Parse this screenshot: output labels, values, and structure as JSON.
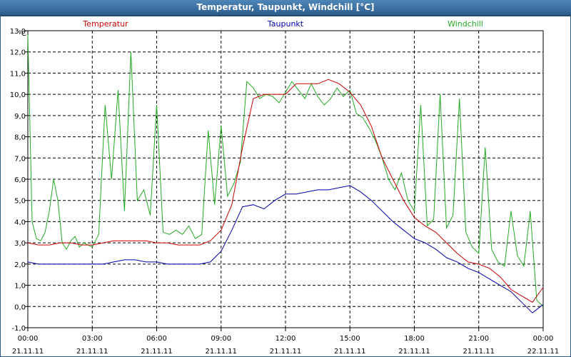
{
  "window": {
    "title": "Temperatur, Taupunkt, Windchill [°C]"
  },
  "colors": {
    "temperature": "#cc0000",
    "dewpoint": "#0000aa",
    "windchill": "#22aa22",
    "titlebar": "#3a6ea5"
  },
  "chart_data": {
    "type": "line",
    "title": "Temperatur, Taupunkt, Windchill [°C]",
    "ylabel": "°C",
    "xlabel": "",
    "unit": "°C",
    "ylim": [
      -1.0,
      13.0
    ],
    "xlim": [
      0,
      24
    ],
    "grid": true,
    "legend_position": "top",
    "y_ticks": [
      "-1,0",
      "0,0",
      "1,0",
      "2,0",
      "3,0",
      "4,0",
      "5,0",
      "6,0",
      "7,0",
      "8,0",
      "9,0",
      "10,0",
      "11,0",
      "12,0",
      "13,0"
    ],
    "x_ticks": [
      {
        "time": "00:00",
        "date": "21.11.11"
      },
      {
        "time": "03:00",
        "date": "21.11.11"
      },
      {
        "time": "06:00",
        "date": "21.11.11"
      },
      {
        "time": "09:00",
        "date": "21.11.11"
      },
      {
        "time": "12:00",
        "date": "21.11.11"
      },
      {
        "time": "15:00",
        "date": "21.11.11"
      },
      {
        "time": "18:00",
        "date": "21.11.11"
      },
      {
        "time": "21:00",
        "date": "21.11.11"
      },
      {
        "time": "00:00",
        "date": "22.11.11"
      }
    ],
    "series": [
      {
        "name": "Temperatur",
        "color": "#cc0000",
        "x": [
          0,
          0.5,
          1,
          1.5,
          2,
          2.5,
          3,
          3.5,
          4,
          4.5,
          5,
          5.5,
          6,
          6.5,
          7,
          7.5,
          8,
          8.5,
          9,
          9.5,
          10,
          10.5,
          11,
          11.5,
          12,
          12.5,
          13,
          13.5,
          14,
          14.5,
          15,
          15.5,
          16,
          16.5,
          17,
          17.5,
          18,
          18.5,
          19,
          19.5,
          20,
          20.5,
          21,
          21.5,
          22,
          22.5,
          23,
          23.5,
          24
        ],
        "values": [
          3.0,
          2.9,
          2.9,
          3.0,
          3.0,
          2.9,
          2.9,
          3.0,
          3.1,
          3.1,
          3.1,
          3.1,
          3.0,
          3.0,
          2.9,
          2.9,
          2.9,
          3.1,
          3.6,
          4.8,
          7.5,
          9.8,
          10.0,
          10.0,
          10.0,
          10.5,
          10.5,
          10.5,
          10.7,
          10.5,
          10.1,
          9.5,
          8.5,
          7.0,
          6.0,
          5.0,
          4.2,
          3.8,
          3.5,
          3.0,
          2.5,
          2.1,
          2.0,
          1.8,
          1.4,
          0.8,
          0.5,
          0.2,
          0.9
        ]
      },
      {
        "name": "Taupunkt",
        "color": "#0000aa",
        "x": [
          0,
          0.5,
          1,
          1.5,
          2,
          2.5,
          3,
          3.5,
          4,
          4.5,
          5,
          5.5,
          6,
          6.5,
          7,
          7.5,
          8,
          8.5,
          9,
          9.5,
          10,
          10.5,
          11,
          11.5,
          12,
          12.5,
          13,
          13.5,
          14,
          14.5,
          15,
          15.5,
          16,
          16.5,
          17,
          17.5,
          18,
          18.5,
          19,
          19.5,
          20,
          20.5,
          21,
          21.5,
          22,
          22.5,
          23,
          23.5,
          24
        ],
        "values": [
          2.1,
          2.0,
          2.0,
          2.0,
          2.0,
          2.0,
          2.0,
          2.0,
          2.1,
          2.2,
          2.2,
          2.1,
          2.1,
          2.0,
          2.0,
          2.0,
          2.0,
          2.1,
          2.6,
          3.6,
          4.7,
          4.8,
          4.6,
          5.0,
          5.3,
          5.3,
          5.4,
          5.5,
          5.5,
          5.6,
          5.7,
          5.4,
          5.0,
          4.5,
          4.0,
          3.6,
          3.2,
          3.0,
          2.7,
          2.3,
          2.1,
          1.8,
          1.6,
          1.3,
          1.0,
          0.7,
          0.2,
          -0.3,
          0.1
        ]
      },
      {
        "name": "Windchill",
        "color": "#22aa22",
        "x": [
          0,
          0.2,
          0.4,
          0.6,
          0.8,
          1.0,
          1.2,
          1.4,
          1.6,
          1.8,
          2.0,
          2.2,
          2.4,
          2.6,
          2.8,
          3.0,
          3.3,
          3.6,
          3.9,
          4.2,
          4.5,
          4.8,
          5.1,
          5.4,
          5.7,
          6.0,
          6.3,
          6.6,
          6.9,
          7.2,
          7.5,
          7.8,
          8.1,
          8.4,
          8.7,
          9.0,
          9.3,
          9.6,
          9.9,
          10.2,
          10.5,
          10.8,
          11.1,
          11.4,
          11.7,
          12.0,
          12.3,
          12.6,
          12.9,
          13.2,
          13.5,
          13.8,
          14.1,
          14.4,
          14.7,
          15.0,
          15.3,
          15.6,
          15.9,
          16.2,
          16.5,
          16.8,
          17.1,
          17.4,
          17.7,
          18.0,
          18.3,
          18.6,
          18.9,
          19.2,
          19.5,
          19.8,
          20.1,
          20.4,
          20.7,
          21.0,
          21.3,
          21.6,
          21.9,
          22.2,
          22.5,
          22.8,
          23.1,
          23.4,
          23.7,
          24.0
        ],
        "values": [
          12.8,
          4.0,
          3.2,
          3.1,
          3.5,
          4.5,
          6.0,
          5.0,
          3.0,
          2.7,
          3.1,
          3.3,
          2.8,
          3.0,
          2.9,
          2.8,
          3.4,
          9.5,
          6.0,
          10.2,
          4.5,
          12.0,
          5.0,
          5.5,
          4.3,
          9.5,
          3.5,
          3.4,
          3.6,
          3.4,
          3.8,
          3.2,
          3.4,
          8.3,
          4.8,
          8.5,
          5.2,
          5.8,
          6.8,
          10.6,
          10.3,
          9.8,
          10.0,
          9.9,
          9.6,
          10.1,
          10.6,
          10.2,
          9.8,
          10.5,
          9.9,
          9.5,
          9.8,
          10.3,
          9.9,
          10.2,
          9.1,
          8.9,
          8.4,
          7.8,
          7.0,
          6.0,
          5.5,
          6.3,
          5.0,
          4.5,
          9.5,
          3.8,
          4.1,
          10.0,
          3.7,
          4.3,
          9.8,
          3.5,
          2.8,
          2.5,
          7.5,
          2.7,
          2.1,
          1.9,
          4.5,
          2.4,
          1.9,
          4.5,
          0.3,
          0.0
        ]
      }
    ]
  }
}
